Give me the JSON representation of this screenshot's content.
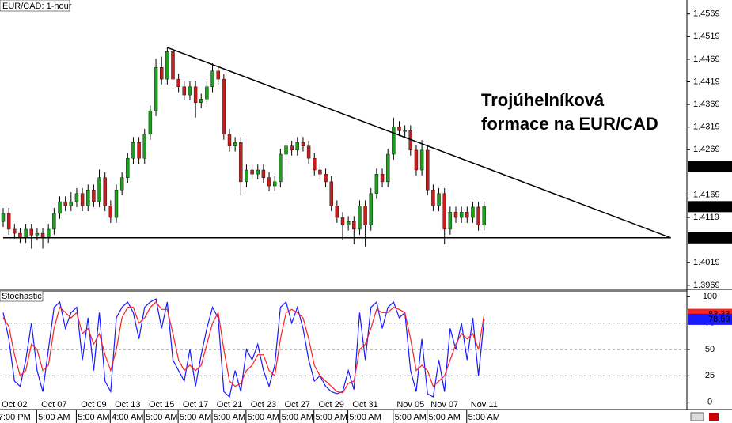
{
  "chart_data": [
    {
      "type": "candlestick",
      "title": "EUR/CAD: 1-hour",
      "annotation": [
        "Trojúhelníková",
        "formace na EUR/CAD"
      ],
      "up_color": "#1e9e1e",
      "down_color": "#c81e1e",
      "wick_color": "#000000",
      "ylim": [
        1.396,
        1.46
      ],
      "yticks": [
        1.4569,
        1.4519,
        1.4469,
        1.4419,
        1.4369,
        1.4319,
        1.4269,
        1.4169,
        1.4119,
        1.4019,
        1.3969
      ],
      "categories": [
        null,
        null,
        "Oct 02",
        null,
        null,
        null,
        null,
        null,
        null,
        "Oct 07",
        null,
        null,
        null,
        null,
        null,
        null,
        "Oct 09",
        null,
        null,
        null,
        null,
        null,
        "Oct 13",
        null,
        null,
        null,
        null,
        null,
        "Oct 15",
        null,
        null,
        null,
        null,
        null,
        "Oct 17",
        null,
        null,
        null,
        null,
        null,
        "Oct 21",
        null,
        null,
        null,
        null,
        null,
        "Oct 23",
        null,
        null,
        null,
        null,
        null,
        "Oct 27",
        null,
        null,
        null,
        null,
        null,
        "Oct 29",
        null,
        null,
        null,
        null,
        null,
        "Oct 31",
        null,
        null,
        null,
        null,
        null,
        null,
        null,
        "Nov 05",
        null,
        null,
        null,
        null,
        null,
        "Nov 07",
        null,
        null,
        null,
        null,
        null,
        null,
        "Nov 11"
      ],
      "time_labels": [
        null,
        null,
        "7:00 PM",
        null,
        null,
        null,
        null,
        null,
        null,
        "5:00 AM",
        null,
        null,
        null,
        null,
        null,
        null,
        "5:00 AM",
        null,
        null,
        null,
        null,
        null,
        "4:00 AM",
        null,
        null,
        null,
        null,
        null,
        "5:00 AM",
        null,
        null,
        null,
        null,
        null,
        "5:00 AM",
        null,
        null,
        null,
        null,
        null,
        "5:00 AM",
        null,
        null,
        null,
        null,
        null,
        "5:00 AM",
        null,
        null,
        null,
        null,
        null,
        "5:00 AM",
        null,
        null,
        null,
        null,
        null,
        "5:00 AM",
        null,
        null,
        null,
        null,
        null,
        "5:00 AM",
        null,
        null,
        null,
        null,
        null,
        null,
        null,
        "5:00 AM",
        null,
        null,
        null,
        null,
        null,
        "5:00 AM",
        null,
        null,
        null,
        null,
        null,
        null,
        "5:00 AM"
      ],
      "open": [
        1.411,
        1.4128,
        1.4093,
        1.4084,
        1.4075,
        1.4093,
        1.408,
        1.4084,
        1.4075,
        1.4093,
        1.4128,
        1.4154,
        1.4145,
        1.4154,
        1.4172,
        1.4145,
        1.418,
        1.4154,
        1.4207,
        1.4145,
        1.4119,
        1.418,
        1.4207,
        1.425,
        1.4285,
        1.425,
        1.4303,
        1.4355,
        1.4451,
        1.4425,
        1.4486,
        1.4425,
        1.4408,
        1.439,
        1.4408,
        1.4373,
        1.4381,
        1.4408,
        1.4443,
        1.4425,
        1.4303,
        1.4277,
        1.4285,
        1.4198,
        1.4224,
        1.4215,
        1.4224,
        1.4207,
        1.4189,
        1.4198,
        1.4259,
        1.4277,
        1.4268,
        1.4285,
        1.4277,
        1.425,
        1.4224,
        1.4215,
        1.4198,
        1.4145,
        1.4119,
        1.4102,
        1.411,
        1.4093,
        1.4145,
        1.4102,
        1.4172,
        1.4215,
        1.4198,
        1.4259,
        1.432,
        1.4311,
        1.4311,
        1.4268,
        1.4224,
        1.4268,
        1.418,
        1.4145,
        1.4172,
        1.4093,
        1.4131,
        1.4119,
        1.4131,
        1.4119,
        1.4142,
        1.4102
      ],
      "high": [
        1.414,
        1.414,
        1.4105,
        1.4096,
        1.4105,
        1.4105,
        1.4096,
        1.4096,
        1.4105,
        1.414,
        1.4166,
        1.4166,
        1.4175,
        1.4184,
        1.4184,
        1.4192,
        1.4192,
        1.4225,
        1.4219,
        1.4157,
        1.4192,
        1.4219,
        1.4262,
        1.4297,
        1.4297,
        1.4315,
        1.4367,
        1.447,
        1.4475,
        1.4495,
        1.4498,
        1.4437,
        1.442,
        1.442,
        1.442,
        1.4393,
        1.442,
        1.446,
        1.4455,
        1.4437,
        1.4315,
        1.4297,
        1.4297,
        1.4236,
        1.4236,
        1.4236,
        1.4236,
        1.4219,
        1.421,
        1.4271,
        1.4289,
        1.4289,
        1.4297,
        1.4297,
        1.4289,
        1.4262,
        1.4236,
        1.4227,
        1.421,
        1.4157,
        1.4131,
        1.4122,
        1.4122,
        1.4157,
        1.4157,
        1.4184,
        1.4227,
        1.4227,
        1.4271,
        1.434,
        1.4332,
        1.4323,
        1.4323,
        1.428,
        1.429,
        1.428,
        1.4192,
        1.4184,
        1.4184,
        1.4143,
        1.4143,
        1.4143,
        1.4143,
        1.4154,
        1.4154,
        1.4155
      ],
      "low": [
        1.4098,
        1.4081,
        1.4072,
        1.4063,
        1.4063,
        1.405,
        1.4068,
        1.405,
        1.4063,
        1.4081,
        1.4116,
        1.4133,
        1.4133,
        1.4142,
        1.4133,
        1.4133,
        1.4142,
        1.4142,
        1.4133,
        1.4107,
        1.4107,
        1.4168,
        1.4195,
        1.4238,
        1.4238,
        1.4238,
        1.4291,
        1.4343,
        1.4413,
        1.4413,
        1.4413,
        1.4396,
        1.4378,
        1.4378,
        1.434,
        1.4361,
        1.4369,
        1.4396,
        1.4413,
        1.4291,
        1.4265,
        1.4265,
        1.4168,
        1.4186,
        1.4203,
        1.4203,
        1.4195,
        1.4177,
        1.4177,
        1.4186,
        1.4247,
        1.4256,
        1.4256,
        1.4265,
        1.4238,
        1.4212,
        1.4203,
        1.4186,
        1.4133,
        1.4107,
        1.407,
        1.409,
        1.406,
        1.4081,
        1.4055,
        1.409,
        1.416,
        1.4186,
        1.4186,
        1.4247,
        1.4299,
        1.4295,
        1.4256,
        1.4212,
        1.4212,
        1.4168,
        1.4133,
        1.4133,
        1.406,
        1.4081,
        1.4107,
        1.4107,
        1.4107,
        1.4107,
        1.409,
        1.409
      ],
      "close": [
        1.4128,
        1.4093,
        1.4084,
        1.4075,
        1.4093,
        1.408,
        1.4084,
        1.4075,
        1.4093,
        1.4128,
        1.4154,
        1.4145,
        1.4154,
        1.4172,
        1.4145,
        1.418,
        1.4154,
        1.4207,
        1.4145,
        1.4119,
        1.418,
        1.4207,
        1.425,
        1.4285,
        1.425,
        1.4303,
        1.4355,
        1.4451,
        1.4425,
        1.4486,
        1.4425,
        1.4408,
        1.439,
        1.4408,
        1.4373,
        1.4381,
        1.4408,
        1.4443,
        1.4425,
        1.4303,
        1.4277,
        1.4285,
        1.4198,
        1.4224,
        1.4215,
        1.4224,
        1.4207,
        1.4189,
        1.4198,
        1.4259,
        1.4277,
        1.4268,
        1.4285,
        1.4277,
        1.425,
        1.4224,
        1.4215,
        1.4198,
        1.4145,
        1.4119,
        1.4102,
        1.411,
        1.4093,
        1.4145,
        1.4102,
        1.4172,
        1.4215,
        1.4198,
        1.4259,
        1.432,
        1.4311,
        1.4311,
        1.4268,
        1.4224,
        1.4268,
        1.418,
        1.4145,
        1.4172,
        1.4093,
        1.4131,
        1.4119,
        1.4131,
        1.4119,
        1.4142,
        1.4102,
        1.4143
      ],
      "trendlines": [
        {
          "color": "#000000",
          "x": [
            29,
            118
          ],
          "values": [
            1.4495,
            1.4074
          ]
        },
        {
          "color": "#000000",
          "x": [
            0,
            118
          ],
          "values": [
            1.4074,
            1.4074
          ]
        }
      ],
      "price_markers": [
        1.4231,
        1.4143,
        1.4074
      ]
    },
    {
      "type": "line",
      "title": "Stochastic",
      "ylim": [
        -7,
        104
      ],
      "yticks": [
        100,
        75,
        50,
        25,
        0
      ],
      "levels": [
        75,
        50,
        25
      ],
      "series": [
        {
          "color": "#1a1aff",
          "values": [
            85,
            60,
            20,
            15,
            40,
            75,
            30,
            10,
            50,
            90,
            95,
            70,
            85,
            90,
            40,
            80,
            30,
            85,
            20,
            10,
            80,
            90,
            95,
            85,
            60,
            90,
            95,
            98,
            70,
            95,
            40,
            30,
            20,
            50,
            15,
            45,
            70,
            90,
            80,
            10,
            5,
            30,
            10,
            50,
            40,
            55,
            30,
            15,
            35,
            90,
            95,
            75,
            90,
            70,
            40,
            20,
            25,
            15,
            10,
            8,
            10,
            30,
            12,
            85,
            40,
            90,
            95,
            70,
            90,
            95,
            80,
            85,
            30,
            10,
            60,
            8,
            5,
            40,
            10,
            70,
            50,
            75,
            40,
            80,
            25,
            78.59
          ]
        },
        {
          "color": "#ff2020",
          "values": [
            80,
            72,
            45,
            25,
            30,
            55,
            50,
            30,
            35,
            70,
            90,
            85,
            80,
            85,
            65,
            70,
            55,
            65,
            45,
            30,
            50,
            80,
            90,
            90,
            75,
            80,
            90,
            95,
            88,
            88,
            65,
            40,
            30,
            35,
            30,
            35,
            55,
            75,
            85,
            50,
            20,
            15,
            18,
            30,
            35,
            45,
            45,
            30,
            25,
            60,
            85,
            88,
            85,
            80,
            60,
            35,
            25,
            20,
            15,
            10,
            9,
            18,
            20,
            50,
            55,
            70,
            88,
            85,
            85,
            90,
            88,
            85,
            60,
            30,
            35,
            30,
            15,
            20,
            25,
            40,
            55,
            65,
            60,
            65,
            50,
            83.33
          ]
        }
      ]
    }
  ]
}
